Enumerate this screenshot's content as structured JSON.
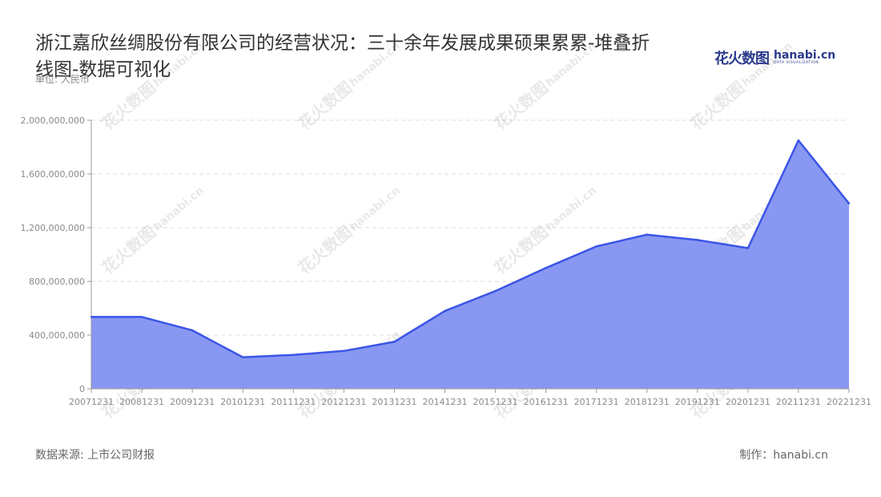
{
  "title": "浙江嘉欣丝绸股份有限公司的经营状况：三十余年发展成果硕果累累-堆叠折线图-数据可视化",
  "unit_label": "单位: 人民币",
  "source_label": "数据来源: 上市公司财报",
  "maker_label": "制作：hanabi.cn",
  "logo": {
    "cn": "花火数图",
    "en": "hanabi.cn",
    "sub": "DATA VISUALIZATION"
  },
  "watermark": {
    "cn": "花火数图",
    "en": "hanabi.cn"
  },
  "colors": {
    "line": "#3b55e6",
    "fill": "#8898f2",
    "axis": "#999999",
    "grid": "#dddddd",
    "text": "#333333"
  },
  "chart_data": {
    "type": "area",
    "x": [
      "20071231",
      "20081231",
      "20091231",
      "20101231",
      "20111231",
      "20121231",
      "20131231",
      "20141231",
      "20151231",
      "20161231",
      "20171231",
      "20181231",
      "20191231",
      "20201231",
      "20211231",
      "20221231"
    ],
    "series": [
      {
        "values": [
          535000000,
          535000000,
          435000000,
          235000000,
          252000000,
          282000000,
          350000000,
          580000000,
          728000000,
          900000000,
          1060000000,
          1148000000,
          1108000000,
          1048000000,
          1850000000,
          1380000000
        ]
      }
    ],
    "yticks": [
      0,
      400000000,
      800000000,
      1200000000,
      1600000000,
      2000000000
    ],
    "ytick_labels": [
      "0",
      "400,000,000",
      "800,000,000",
      "1,200,000,000",
      "1,600,000,000",
      "2,000,000,000"
    ],
    "ylim": [
      0,
      2000000000
    ],
    "grid": true
  }
}
